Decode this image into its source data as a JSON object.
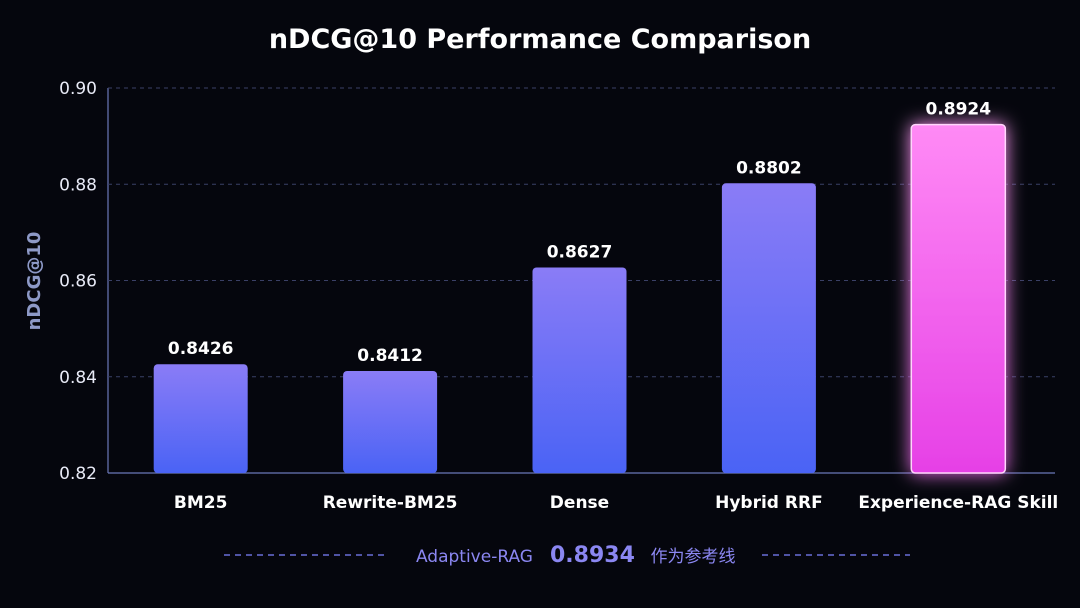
{
  "chart_data": {
    "type": "bar",
    "title": "nDCG@10 Performance Comparison",
    "xlabel": "",
    "ylabel": "nDCG@10",
    "ylim": [
      0.82,
      0.9
    ],
    "yticks": [
      "0.82",
      "0.84",
      "0.86",
      "0.88",
      "0.90"
    ],
    "grid": true,
    "categories": [
      "BM25",
      "Rewrite-BM25",
      "Dense",
      "Hybrid RRF",
      "Experience-RAG Skill"
    ],
    "values": [
      0.8426,
      0.8412,
      0.8627,
      0.8802,
      0.8924
    ],
    "value_labels": [
      "0.8426",
      "0.8412",
      "0.8627",
      "0.8802",
      "0.8924"
    ],
    "highlight_index": 4,
    "reference": {
      "label": "Adaptive-RAG",
      "value": "0.8934",
      "suffix": "作为参考线"
    },
    "colors": {
      "background": "#05060d",
      "bar_top": "#8a7cf6",
      "bar_bottom": "#4a63f5",
      "highlight_top": "#ff8af5",
      "highlight_bottom": "#e640e6",
      "grid": "#3a4066",
      "axis": "#6b78b8",
      "reference": "#8b87f2"
    }
  }
}
